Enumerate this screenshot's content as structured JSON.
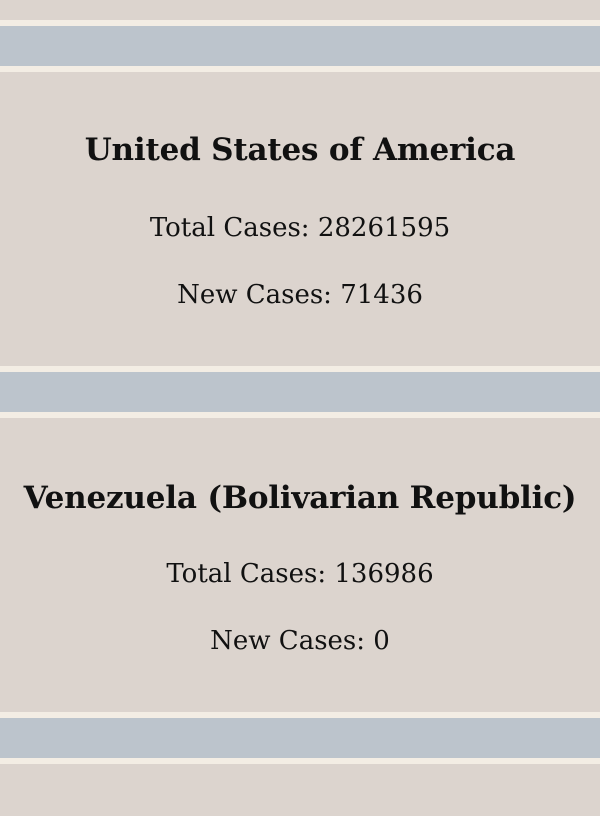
{
  "countries": [
    {
      "name": "United States of America",
      "total_cases_label": "Total Cases:",
      "total_cases": "28261595",
      "new_cases_label": "New Cases:",
      "new_cases": "71436"
    },
    {
      "name": "Venezuela (Bolivarian Republic)",
      "total_cases_label": "Total Cases:",
      "total_cases": "136986",
      "new_cases_label": "New Cases:",
      "new_cases": "0"
    }
  ],
  "colors": {
    "page_background": "#f3ede4",
    "card_background": "#dcd4ce",
    "separator": "#bcc4cc",
    "text": "#111111"
  }
}
